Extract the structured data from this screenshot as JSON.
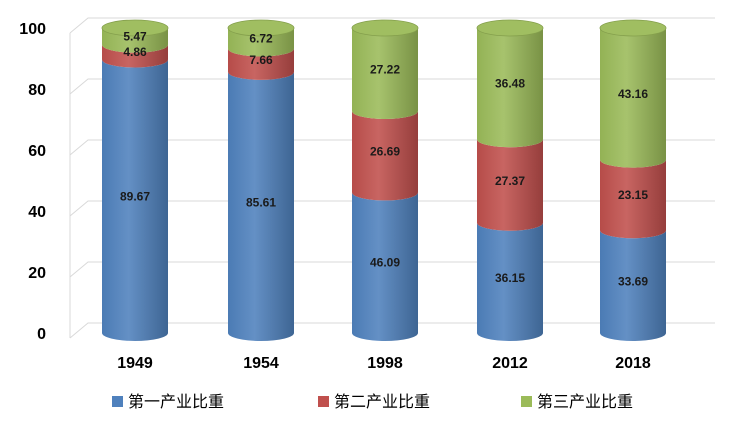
{
  "chart_data": {
    "type": "bar",
    "stacked": true,
    "shape": "cylinder",
    "categories": [
      "1949",
      "1954",
      "1998",
      "2012",
      "2018"
    ],
    "series": [
      {
        "name": "第一产业比重",
        "color": "#4F81BD",
        "values": [
          89.67,
          85.61,
          46.09,
          36.15,
          33.69
        ]
      },
      {
        "name": "第二产业比重",
        "color": "#C0504D",
        "values": [
          4.86,
          7.66,
          26.69,
          27.37,
          23.15
        ]
      },
      {
        "name": "第三产业比重",
        "color": "#9BBB59",
        "values": [
          5.47,
          6.72,
          27.22,
          36.48,
          43.16
        ]
      }
    ],
    "ylim": [
      0,
      100
    ],
    "yticks": [
      "0",
      "20",
      "40",
      "60",
      "80",
      "100"
    ],
    "grid": true,
    "legend_position": "bottom"
  }
}
